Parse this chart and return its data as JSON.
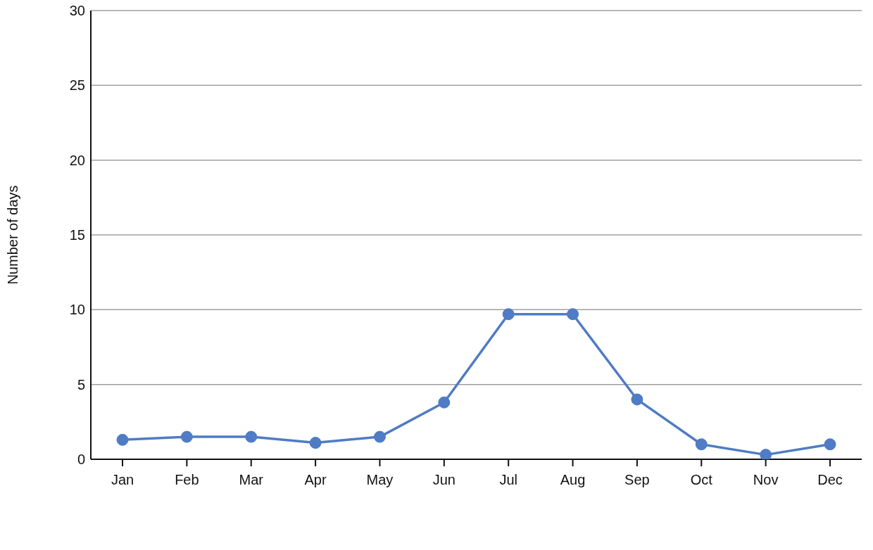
{
  "chart_data": {
    "type": "line",
    "ylabel": "Number of days",
    "categories": [
      "Jan",
      "Feb",
      "Mar",
      "Apr",
      "May",
      "Jun",
      "Jul",
      "Aug",
      "Sep",
      "Oct",
      "Nov",
      "Dec"
    ],
    "series": [
      {
        "color": "#4f7cc4",
        "values": [
          1.3,
          1.5,
          1.5,
          1.1,
          1.5,
          3.8,
          9.7,
          9.7,
          4.0,
          1.0,
          0.3,
          1.0
        ]
      }
    ],
    "ylim": [
      0,
      30
    ],
    "yticks": [
      0,
      5,
      10,
      15,
      20,
      25,
      30
    ],
    "grid": "y",
    "marker": "circle",
    "line_style": "solid"
  }
}
